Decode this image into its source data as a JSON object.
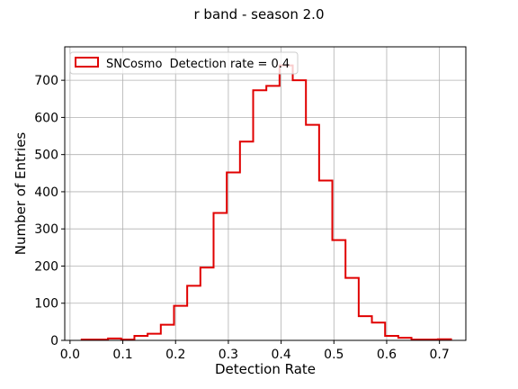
{
  "chart_data": {
    "type": "histogram",
    "title": "r band - season 2.0",
    "xlabel": "Detection Rate",
    "ylabel": "Number of Entries",
    "xlim": [
      -0.01,
      0.75
    ],
    "ylim": [
      0,
      790
    ],
    "grid": true,
    "legend": {
      "placement": "top-left",
      "entries": [
        "SNCosmo  Detection rate = 0.4"
      ]
    },
    "x_ticks": [
      "0.0",
      "0.1",
      "0.2",
      "0.3",
      "0.4",
      "0.5",
      "0.6",
      "0.7"
    ],
    "x_tick_values": [
      0.0,
      0.1,
      0.2,
      0.3,
      0.4,
      0.5,
      0.6,
      0.7
    ],
    "y_ticks": [
      "0",
      "100",
      "200",
      "300",
      "400",
      "500",
      "600",
      "700"
    ],
    "y_tick_values": [
      0,
      100,
      200,
      300,
      400,
      500,
      600,
      700
    ],
    "series": [
      {
        "name": "SNCosmo  Detection rate = 0.4",
        "color": "#e00000",
        "bin_edges": [
          0.022,
          0.047,
          0.072,
          0.097,
          0.122,
          0.147,
          0.172,
          0.197,
          0.222,
          0.247,
          0.272,
          0.297,
          0.322,
          0.347,
          0.372,
          0.397,
          0.422,
          0.447,
          0.472,
          0.497,
          0.522,
          0.547,
          0.572,
          0.597,
          0.622,
          0.647,
          0.672,
          0.697,
          0.722
        ],
        "counts": [
          2,
          2,
          5,
          2,
          12,
          18,
          42,
          93,
          147,
          196,
          343,
          452,
          535,
          673,
          685,
          740,
          700,
          580,
          430,
          270,
          168,
          65,
          48,
          12,
          7,
          2,
          2,
          3
        ]
      }
    ]
  }
}
